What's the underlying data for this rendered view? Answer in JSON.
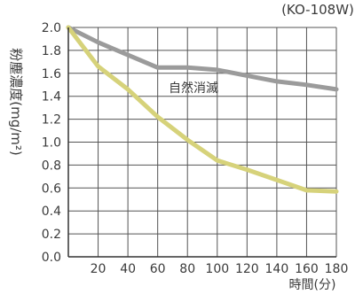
{
  "chart_data": {
    "type": "line",
    "title": "",
    "model_label": "(KO-108W)",
    "xlabel": "時間(分)",
    "ylabel": "粉塵濃度(mg/m²)",
    "xlim": [
      0,
      180
    ],
    "ylim": [
      0,
      2.0
    ],
    "x_ticks": [
      20,
      40,
      60,
      80,
      100,
      120,
      140,
      160,
      180
    ],
    "y_ticks": [
      0.0,
      0.2,
      0.4,
      0.6,
      0.8,
      1.0,
      1.2,
      1.4,
      1.6,
      1.8,
      2.0
    ],
    "y_tick_labels": [
      "0.0",
      "0.2",
      "0.4",
      "0.6",
      "0.8",
      "1.0",
      "1.2",
      "1.4",
      "1.6",
      "1.8",
      "2.0"
    ],
    "grid": true,
    "series": [
      {
        "name": "自然消滅",
        "color": "#9b9b9b",
        "points": [
          [
            0,
            2.0
          ],
          [
            20,
            1.87
          ],
          [
            40,
            1.76
          ],
          [
            60,
            1.65
          ],
          [
            80,
            1.65
          ],
          [
            100,
            1.63
          ],
          [
            120,
            1.58
          ],
          [
            140,
            1.53
          ],
          [
            160,
            1.5
          ],
          [
            180,
            1.46
          ]
        ]
      },
      {
        "name": "",
        "color": "#d6d27a",
        "points": [
          [
            0,
            2.0
          ],
          [
            20,
            1.66
          ],
          [
            40,
            1.46
          ],
          [
            60,
            1.22
          ],
          [
            80,
            1.02
          ],
          [
            100,
            0.84
          ],
          [
            120,
            0.76
          ],
          [
            140,
            0.67
          ],
          [
            160,
            0.58
          ],
          [
            180,
            0.57
          ]
        ]
      }
    ]
  }
}
